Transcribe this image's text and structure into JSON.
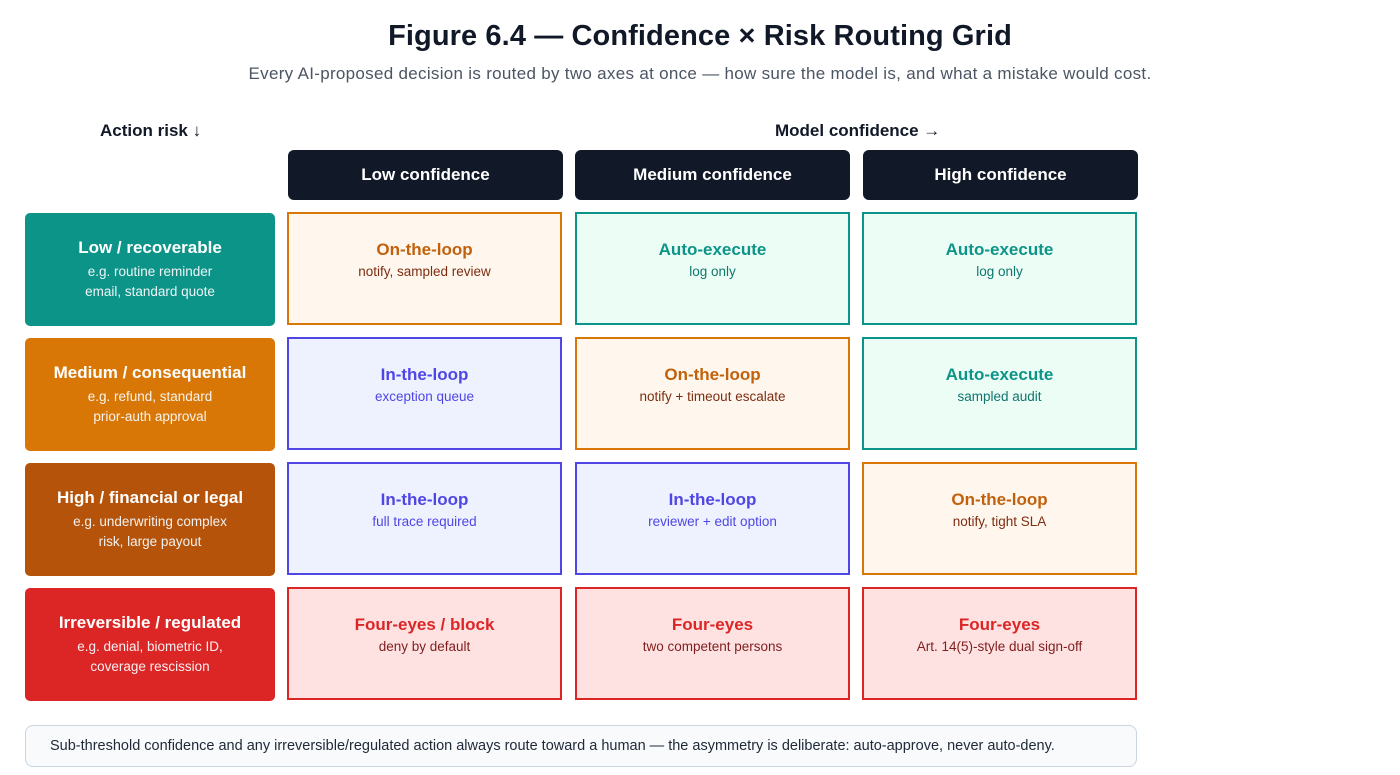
{
  "title": "Figure 6.4 — Confidence × Risk Routing Grid",
  "subtitle": "Every AI-proposed decision is routed by two axes at once — how sure the model is, and what a mistake would cost.",
  "axes": {
    "risk_label": "Action risk ↓",
    "confidence_label": "Model confidence →"
  },
  "columns": [
    {
      "label": "Low confidence"
    },
    {
      "label": "Medium confidence"
    },
    {
      "label": "High confidence"
    }
  ],
  "colors": {
    "header_bg": "#111827",
    "risk_low": "#0d9488",
    "risk_medium": "#d97706",
    "risk_high": "#b45309",
    "risk_irreversible": "#dc2626",
    "on_the_loop": "#d97706",
    "auto_execute": "#0d9488",
    "in_the_loop": "#4f46e5",
    "four_eyes": "#dc2626"
  },
  "rows": [
    {
      "title": "Low / recoverable",
      "line1": "e.g. routine reminder",
      "line2": "email, standard quote",
      "cells": [
        {
          "title": "On-the-loop",
          "sub": "notify, sampled review"
        },
        {
          "title": "Auto-execute",
          "sub": "log only"
        },
        {
          "title": "Auto-execute",
          "sub": "log only"
        }
      ]
    },
    {
      "title": "Medium / consequential",
      "line1": "e.g. refund, standard",
      "line2": "prior-auth approval",
      "cells": [
        {
          "title": "In-the-loop",
          "sub": "exception queue"
        },
        {
          "title": "On-the-loop",
          "sub": "notify + timeout escalate"
        },
        {
          "title": "Auto-execute",
          "sub": "sampled audit"
        }
      ]
    },
    {
      "title": "High / financial or legal",
      "line1": "e.g. underwriting complex",
      "line2": "risk, large payout",
      "cells": [
        {
          "title": "In-the-loop",
          "sub": "full trace required"
        },
        {
          "title": "In-the-loop",
          "sub": "reviewer + edit option"
        },
        {
          "title": "On-the-loop",
          "sub": "notify, tight SLA"
        }
      ]
    },
    {
      "title": "Irreversible / regulated",
      "line1": "e.g. denial, biometric ID,",
      "line2": "coverage rescission",
      "cells": [
        {
          "title": "Four-eyes / block",
          "sub": "deny by default"
        },
        {
          "title": "Four-eyes",
          "sub": "two competent persons"
        },
        {
          "title": "Four-eyes",
          "sub": "Art. 14(5)-style dual sign-off"
        }
      ]
    }
  ],
  "footnote": "Sub-threshold confidence and any irreversible/regulated action always route toward a human — the asymmetry is deliberate: auto-approve, never auto-deny."
}
